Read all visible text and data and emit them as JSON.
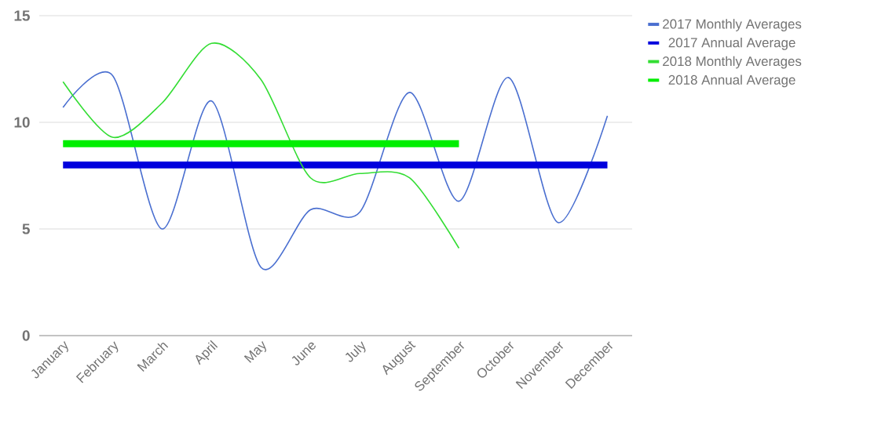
{
  "chart_data": {
    "type": "line",
    "categories": [
      "January",
      "February",
      "March",
      "April",
      "May",
      "June",
      "July",
      "August",
      "September",
      "October",
      "November",
      "December"
    ],
    "series": [
      {
        "name": "2017 Monthly Averages",
        "color": "#4a6fd0",
        "values": [
          10.7,
          12.2,
          5.0,
          11.0,
          3.2,
          5.9,
          5.8,
          11.4,
          6.3,
          12.1,
          5.3,
          10.3
        ]
      },
      {
        "name": "2017 Annual Average",
        "color": "#0000dd",
        "values": [
          8.0,
          8.0,
          8.0,
          8.0,
          8.0,
          8.0,
          8.0,
          8.0,
          8.0,
          8.0,
          8.0,
          8.0
        ]
      },
      {
        "name": "2018 Monthly Averages",
        "color": "#33dd33",
        "values": [
          11.9,
          9.3,
          10.9,
          13.7,
          12.0,
          7.4,
          7.6,
          7.4,
          4.1,
          null,
          null,
          null
        ]
      },
      {
        "name": "2018 Annual Average",
        "color": "#00ee00",
        "values": [
          9.0,
          9.0,
          9.0,
          9.0,
          9.0,
          9.0,
          9.0,
          9.0,
          9.0,
          null,
          null,
          null
        ]
      }
    ],
    "ylim": [
      0,
      15
    ],
    "yticks": [
      0,
      5,
      10,
      15
    ],
    "grid": "y",
    "legend": "right"
  }
}
